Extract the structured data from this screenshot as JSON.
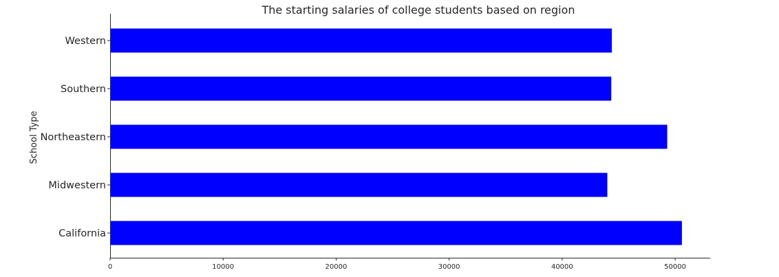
{
  "chart_data": {
    "type": "bar",
    "orientation": "horizontal",
    "title": "The starting salaries of college students based on region",
    "xlabel": "",
    "ylabel": "School Type",
    "categories": [
      "Western",
      "Southern",
      "Northeastern",
      "Midwestern",
      "California"
    ],
    "values": [
      44400,
      44350,
      49300,
      44000,
      50600
    ],
    "xlim": [
      0,
      53100
    ],
    "xticks": [
      0,
      10000,
      20000,
      30000,
      40000,
      50000
    ],
    "xtick_labels": [
      "0",
      "10000",
      "20000",
      "30000",
      "40000",
      "50000"
    ],
    "bar_color": "#0000ff",
    "grid": false,
    "legend": "none"
  }
}
